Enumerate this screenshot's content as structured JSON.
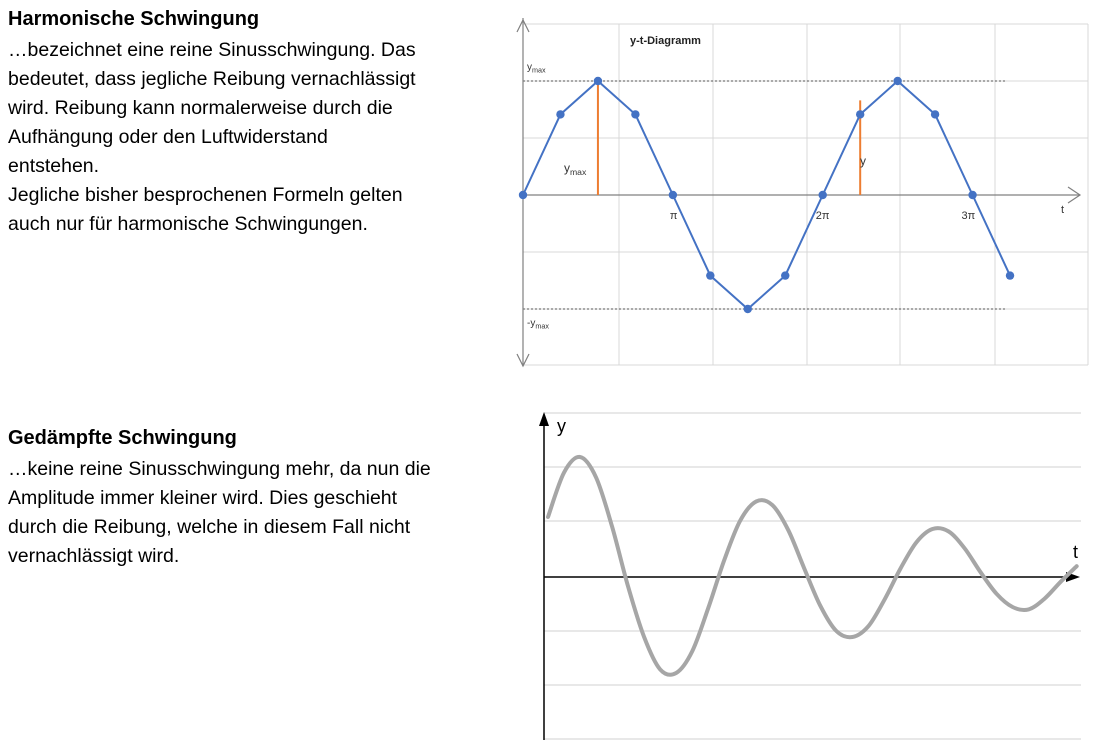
{
  "section1": {
    "title": "Harmonische Schwingung",
    "lines": [
      "…bezeichnet eine reine Sinusschwingung. Das",
      "bedeutet, dass jegliche Reibung vernachlässigt",
      "wird. Reibung kann normalerweise durch die",
      "Aufhängung oder den Luftwiderstand",
      "entstehen.",
      "Jegliche bisher besprochenen Formeln gelten",
      "auch nur für harmonische Schwingungen."
    ]
  },
  "section2": {
    "title": "Gedämpfte Schwingung",
    "lines": [
      "…keine reine Sinusschwingung mehr, da nun die",
      "Amplitude immer kleiner wird. Dies geschieht",
      "durch die Reibung, welche in diesem Fall nicht",
      "vernachlässigt wird."
    ]
  },
  "chart_data": [
    {
      "type": "line",
      "title": "y-t-Diagramm",
      "xlabel": "t",
      "x_ticks": [
        "π",
        "2π",
        "3π"
      ],
      "ylabel_top": "y_max",
      "ylabel_bottom": "-y_max",
      "annotation_ymax": "y_max",
      "annotation_y": "y",
      "grid": true,
      "series_color": "#4472C4",
      "marker_color": "#4472C4",
      "annotation_color": "#ED7D31",
      "amplitude": 1,
      "x_max": 10.21,
      "series": [
        {
          "x": [
            0,
            0.785,
            1.571,
            2.356,
            3.142,
            3.927,
            4.712,
            5.498,
            6.283,
            7.069,
            7.854,
            8.639,
            9.425,
            10.21
          ],
          "values": [
            0,
            0.707,
            1,
            0.707,
            0,
            -0.707,
            -1,
            -0.707,
            0,
            0.707,
            1,
            0.707,
            0,
            -0.707
          ]
        }
      ],
      "x_extra_ticks": [
        1.571,
        1.963,
        2.749,
        4.32,
        5.105,
        6.677,
        7.462,
        9.032
      ],
      "y_extra_values": [
        0.924,
        0.383,
        -0.383,
        -0.924,
        0.924,
        0.383,
        -0.383,
        -0.924
      ],
      "annotation_ymax_x": 1.571,
      "annotation_y_x": 7.069,
      "annotation_y_value": 0.707
    },
    {
      "type": "line",
      "xlabel": "t",
      "ylabel": "y",
      "grid": true,
      "series_color": "#A6A6A6",
      "series": [
        {
          "x": [
            0,
            0.3,
            0.6,
            0.9,
            1.2,
            1.5,
            1.8,
            2.1,
            2.4,
            2.7,
            3.0,
            3.3,
            3.6,
            3.9,
            4.2,
            4.5,
            4.8,
            5.1,
            5.4,
            5.7,
            6.0,
            6.3,
            6.6,
            6.9,
            7.2,
            7.5,
            7.8,
            8.1,
            8.4,
            8.7,
            9.0,
            9.3,
            9.6,
            9.9
          ],
          "values": [
            0.5,
            0.87,
            1.0,
            0.83,
            0.42,
            -0.08,
            -0.5,
            -0.77,
            -0.8,
            -0.62,
            -0.26,
            0.14,
            0.47,
            0.63,
            0.6,
            0.39,
            0.07,
            -0.24,
            -0.45,
            -0.5,
            -0.41,
            -0.19,
            0.07,
            0.29,
            0.4,
            0.38,
            0.24,
            0.04,
            -0.14,
            -0.25,
            -0.27,
            -0.18,
            -0.04,
            0.09
          ]
        }
      ]
    }
  ]
}
